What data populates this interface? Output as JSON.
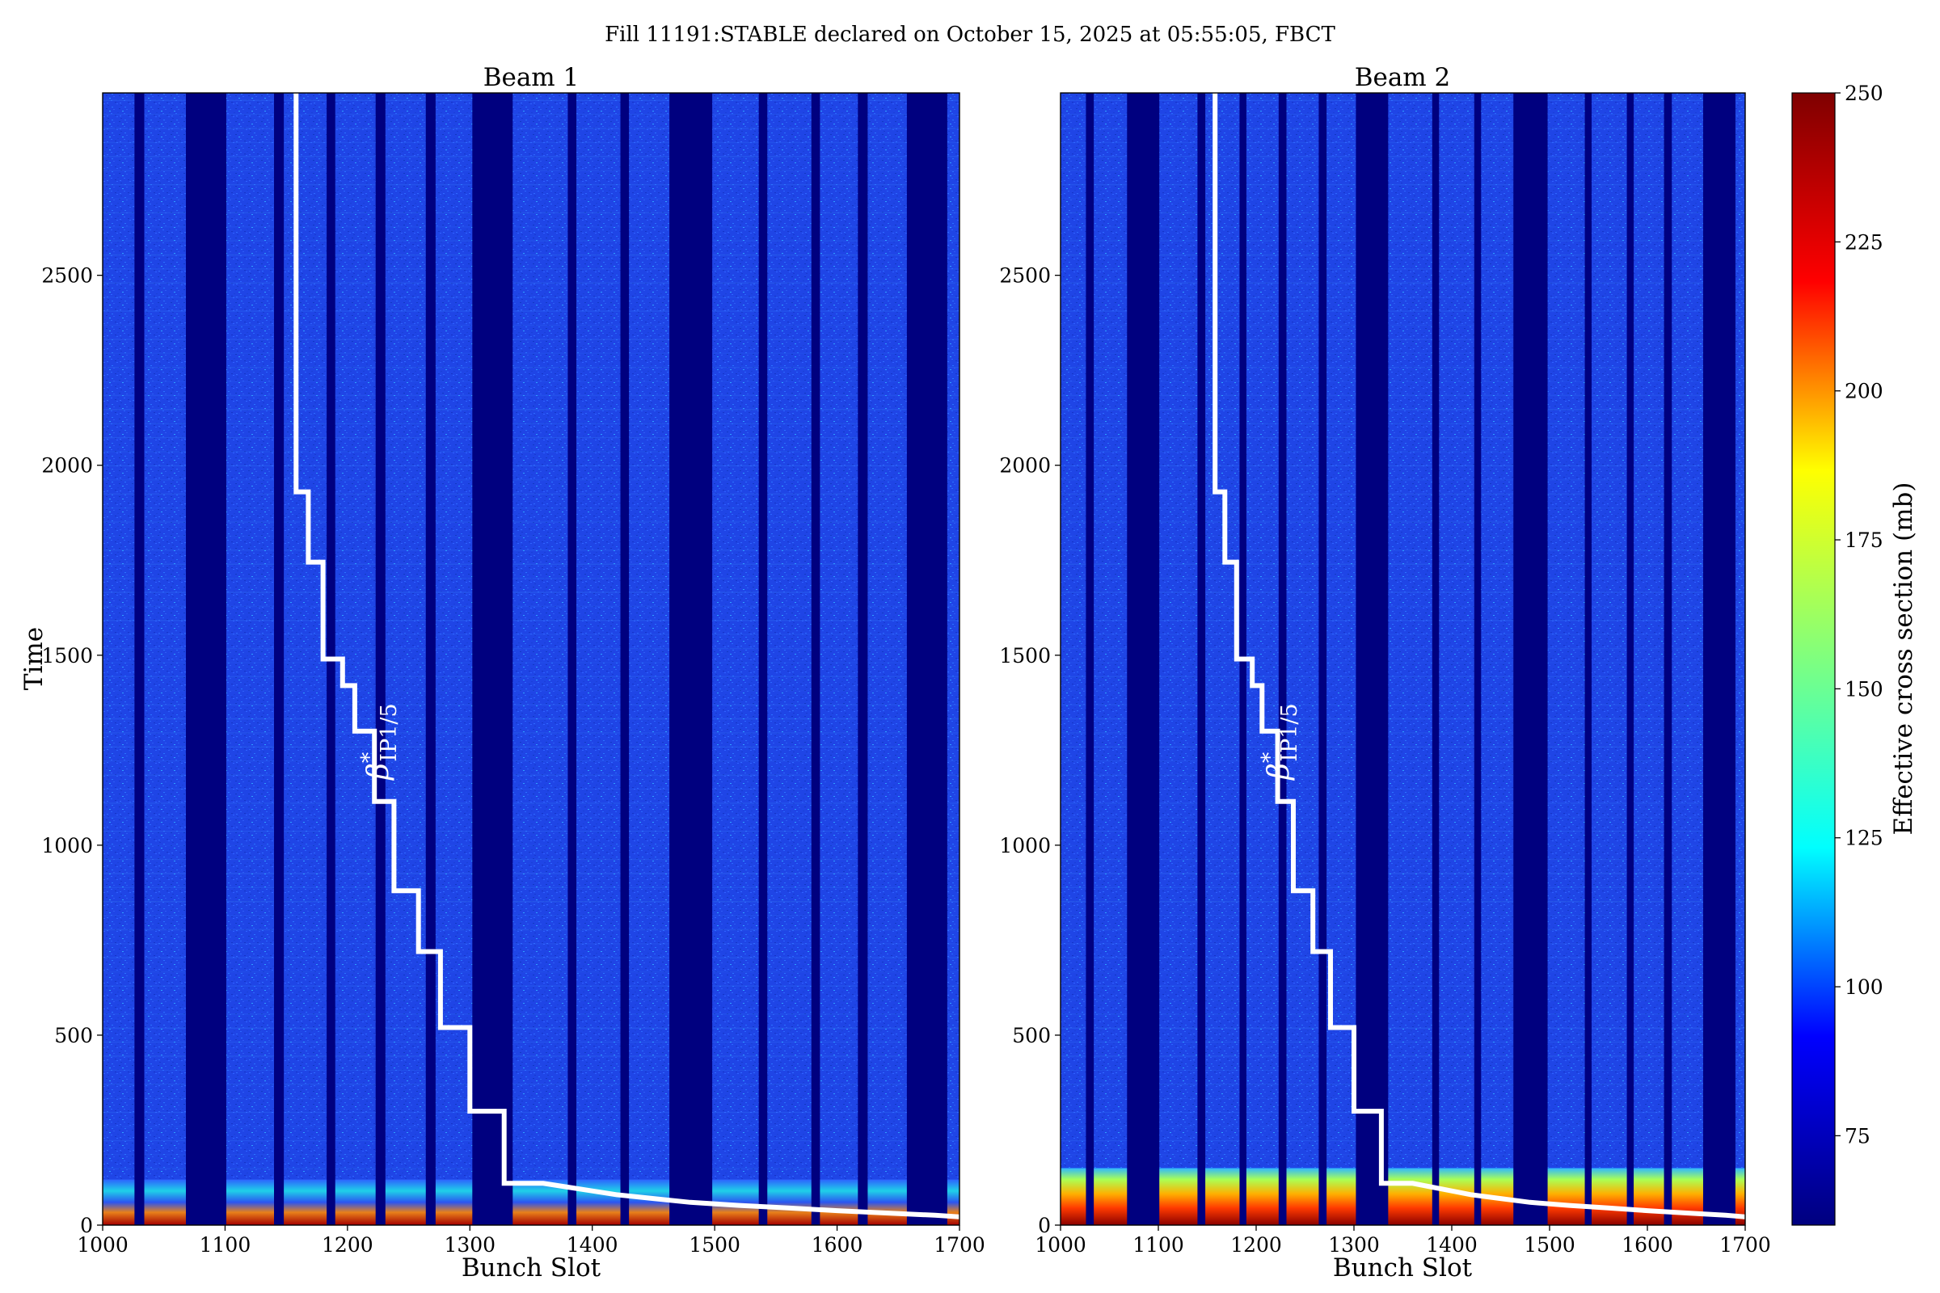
{
  "chart_data": {
    "type": "heatmap",
    "title": "Fill 11191:STABLE declared on October 15, 2025 at 05:55:05, FBCT",
    "colorbar": {
      "label": "Effective cross section (mb)",
      "range": [
        60,
        250
      ],
      "ticks": [
        "75",
        "100",
        "125",
        "150",
        "175",
        "200",
        "225",
        "250"
      ],
      "tick_values": [
        75,
        100,
        125,
        150,
        175,
        200,
        225,
        250
      ],
      "colormap": "jet",
      "stops": [
        "#00007f",
        "#0000ff",
        "#00ffff",
        "#7fff7f",
        "#ffff00",
        "#ff0000",
        "#7f0000"
      ]
    },
    "colors": {
      "empty_slot": "#00007f",
      "background_field": "#1f45e6",
      "beta_line": "#ffffff"
    },
    "panels": [
      {
        "name": "Beam 1",
        "xlabel": "Bunch Slot",
        "ylabel": "Time",
        "xlim": [
          1000,
          1700
        ],
        "ylim": [
          0,
          2980
        ],
        "xticks": [
          "1000",
          "1100",
          "1200",
          "1300",
          "1400",
          "1500",
          "1600",
          "1700"
        ],
        "xtick_values": [
          1000,
          1100,
          1200,
          1300,
          1400,
          1500,
          1600,
          1700
        ],
        "yticks": [
          "0",
          "500",
          "1000",
          "1500",
          "2000",
          "2500"
        ],
        "ytick_values": [
          0,
          500,
          1000,
          1500,
          2000,
          2500
        ],
        "early_hot_band_until": 120,
        "early_hot_intensity": "high"
      },
      {
        "name": "Beam 2",
        "xlabel": "Bunch Slot",
        "ylabel": "",
        "xlim": [
          1000,
          1700
        ],
        "ylim": [
          0,
          2980
        ],
        "xticks": [
          "1000",
          "1100",
          "1200",
          "1300",
          "1400",
          "1500",
          "1600",
          "1700"
        ],
        "xtick_values": [
          1000,
          1100,
          1200,
          1300,
          1400,
          1500,
          1600,
          1700
        ],
        "yticks": [
          "0",
          "500",
          "1000",
          "1500",
          "2000",
          "2500"
        ],
        "ytick_values": [
          0,
          500,
          1000,
          1500,
          2000,
          2500
        ],
        "early_hot_band_until": 150,
        "early_hot_intensity": "very high"
      }
    ],
    "empty_slot_ranges": [
      [
        1026,
        1034
      ],
      [
        1068,
        1101
      ],
      [
        1140,
        1148
      ],
      [
        1183,
        1190
      ],
      [
        1223,
        1231
      ],
      [
        1264,
        1272
      ],
      [
        1302,
        1335
      ],
      [
        1380,
        1387
      ],
      [
        1423,
        1430
      ],
      [
        1463,
        1498
      ],
      [
        1536,
        1543
      ],
      [
        1579,
        1586
      ],
      [
        1617,
        1625
      ],
      [
        1657,
        1690
      ]
    ],
    "beta_annotation": {
      "symbol": "β",
      "superscript": "*",
      "subscript": "IP1/5",
      "x": 1233,
      "y": 1470
    },
    "beta_star_step_line": [
      [
        1158,
        2980
      ],
      [
        1158,
        1930
      ],
      [
        1168,
        1930
      ],
      [
        1168,
        1745
      ],
      [
        1180,
        1745
      ],
      [
        1180,
        1490
      ],
      [
        1196,
        1490
      ],
      [
        1196,
        1420
      ],
      [
        1206,
        1420
      ],
      [
        1206,
        1300
      ],
      [
        1222,
        1300
      ],
      [
        1222,
        1115
      ],
      [
        1238,
        1115
      ],
      [
        1238,
        880
      ],
      [
        1258,
        880
      ],
      [
        1258,
        720
      ],
      [
        1276,
        720
      ],
      [
        1276,
        520
      ],
      [
        1300,
        520
      ],
      [
        1300,
        300
      ],
      [
        1328,
        300
      ],
      [
        1328,
        110
      ],
      [
        1360,
        110
      ],
      [
        1380,
        100
      ],
      [
        1400,
        90
      ],
      [
        1420,
        80
      ],
      [
        1450,
        70
      ],
      [
        1480,
        60
      ],
      [
        1520,
        52
      ],
      [
        1560,
        45
      ],
      [
        1600,
        38
      ],
      [
        1640,
        32
      ],
      [
        1680,
        26
      ],
      [
        1700,
        22
      ]
    ]
  }
}
